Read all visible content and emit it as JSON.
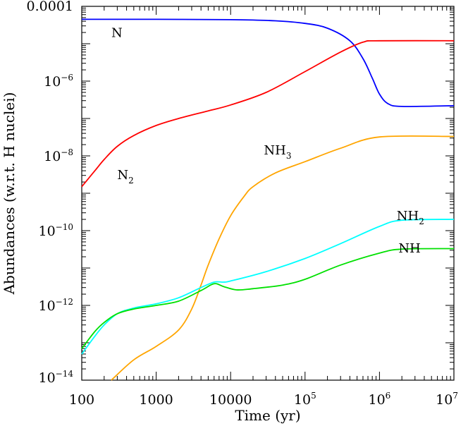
{
  "chart_data": {
    "type": "line",
    "xlabel": "Time (yr)",
    "ylabel": "Abundances (w.r.t. H nuclei)",
    "xscale": "log",
    "yscale": "log",
    "xlim": [
      100,
      10000000
    ],
    "ylim": [
      1e-14,
      0.0001
    ],
    "x_ticks": [
      {
        "value": 100,
        "label": "100",
        "base": "",
        "exp": ""
      },
      {
        "value": 1000,
        "label": "1000",
        "base": "",
        "exp": ""
      },
      {
        "value": 10000,
        "label": "10000",
        "base": "",
        "exp": ""
      },
      {
        "value": 100000,
        "label": "",
        "base": "10",
        "exp": "5"
      },
      {
        "value": 1000000,
        "label": "",
        "base": "10",
        "exp": "6"
      },
      {
        "value": 10000000,
        "label": "",
        "base": "10",
        "exp": "7"
      }
    ],
    "y_ticks": [
      {
        "value": 0.0001,
        "label": "0.0001",
        "base": "",
        "exp": ""
      },
      {
        "value": 1e-06,
        "label": "",
        "base": "10",
        "exp": "−6"
      },
      {
        "value": 1e-08,
        "label": "",
        "base": "10",
        "exp": "−8"
      },
      {
        "value": 1e-10,
        "label": "",
        "base": "10",
        "exp": "−10"
      },
      {
        "value": 1e-12,
        "label": "",
        "base": "10",
        "exp": "−12"
      },
      {
        "value": 1e-14,
        "label": "",
        "base": "10",
        "exp": "−14"
      }
    ],
    "series": [
      {
        "name": "N",
        "base": "N",
        "sub": "",
        "color": "#0000ff",
        "label_at": [
          250,
          1.5e-05
        ],
        "points": [
          [
            100,
            4.5e-05
          ],
          [
            1000,
            4.5e-05
          ],
          [
            10000,
            4.4e-05
          ],
          [
            40000,
            4.1e-05
          ],
          [
            100000,
            3.5e-05
          ],
          [
            200000,
            2.6e-05
          ],
          [
            400000,
            1.2e-05
          ],
          [
            600000,
            4e-06
          ],
          [
            800000,
            1.2e-06
          ],
          [
            1000000,
            4.5e-07
          ],
          [
            1300000,
            2.5e-07
          ],
          [
            2000000,
            2.1e-07
          ],
          [
            10000000,
            2.2e-07
          ]
        ]
      },
      {
        "name": "N2",
        "base": "N",
        "sub": "2",
        "color": "#ff0000",
        "label_at": [
          300,
          2.4e-09
        ],
        "points": [
          [
            100,
            1.5e-09
          ],
          [
            150,
            4e-09
          ],
          [
            200,
            8e-09
          ],
          [
            300,
            1.8e-08
          ],
          [
            500,
            3.5e-08
          ],
          [
            1000,
            6.5e-08
          ],
          [
            2000,
            1e-07
          ],
          [
            5000,
            1.6e-07
          ],
          [
            10000,
            2.3e-07
          ],
          [
            30000,
            5e-07
          ],
          [
            100000,
            1.8e-06
          ],
          [
            300000,
            6e-06
          ],
          [
            600000,
            1.1e-05
          ],
          [
            1000000,
            1.2e-05
          ],
          [
            10000000,
            1.2e-05
          ]
        ]
      },
      {
        "name": "NH3",
        "base": "NH",
        "sub": "3",
        "color": "#ffa500",
        "label_at": [
          28000,
          1.1e-08
        ],
        "points": [
          [
            250,
            1e-14
          ],
          [
            500,
            3.5e-14
          ],
          [
            1000,
            8e-14
          ],
          [
            2000,
            2.2e-13
          ],
          [
            3000,
            8e-13
          ],
          [
            4000,
            3.5e-12
          ],
          [
            5000,
            1.2e-11
          ],
          [
            7000,
            6e-11
          ],
          [
            10000,
            2.5e-10
          ],
          [
            15000,
            8e-10
          ],
          [
            20000,
            1.5e-09
          ],
          [
            40000,
            3.5e-09
          ],
          [
            100000,
            7e-09
          ],
          [
            300000,
            1.6e-08
          ],
          [
            1000000,
            3.2e-08
          ],
          [
            10000000,
            3.3e-08
          ]
        ]
      },
      {
        "name": "NH2",
        "base": "NH",
        "sub": "2",
        "color": "#00ffff",
        "label_at": [
          1700000,
          1.9e-10
        ],
        "points": [
          [
            100,
            5e-14
          ],
          [
            150,
            1.5e-13
          ],
          [
            200,
            3e-13
          ],
          [
            300,
            6e-13
          ],
          [
            500,
            8.5e-13
          ],
          [
            1000,
            1.1e-12
          ],
          [
            2000,
            1.6e-12
          ],
          [
            4000,
            3e-12
          ],
          [
            6000,
            4.2e-12
          ],
          [
            8000,
            4.2e-12
          ],
          [
            10000,
            4.5e-12
          ],
          [
            30000,
            8e-12
          ],
          [
            100000,
            1.8e-11
          ],
          [
            300000,
            4.5e-11
          ],
          [
            1000000,
            1.3e-10
          ],
          [
            2000000,
            1.9e-10
          ],
          [
            10000000,
            2e-10
          ]
        ]
      },
      {
        "name": "NH",
        "base": "NH",
        "sub": "",
        "color": "#00e000",
        "label_at": [
          1800000,
          2.6e-11
        ],
        "points": [
          [
            100,
            7e-14
          ],
          [
            150,
            2e-13
          ],
          [
            200,
            3.5e-13
          ],
          [
            300,
            6e-13
          ],
          [
            500,
            8e-13
          ],
          [
            1000,
            1e-12
          ],
          [
            2000,
            1.3e-12
          ],
          [
            4000,
            2.5e-12
          ],
          [
            6000,
            3.8e-12
          ],
          [
            8000,
            3.2e-12
          ],
          [
            12000,
            2.6e-12
          ],
          [
            20000,
            2.8e-12
          ],
          [
            50000,
            3.5e-12
          ],
          [
            100000,
            5e-12
          ],
          [
            300000,
            1.2e-11
          ],
          [
            1000000,
            2.5e-11
          ],
          [
            2000000,
            3.2e-11
          ],
          [
            10000000,
            3.3e-11
          ]
        ]
      }
    ]
  }
}
